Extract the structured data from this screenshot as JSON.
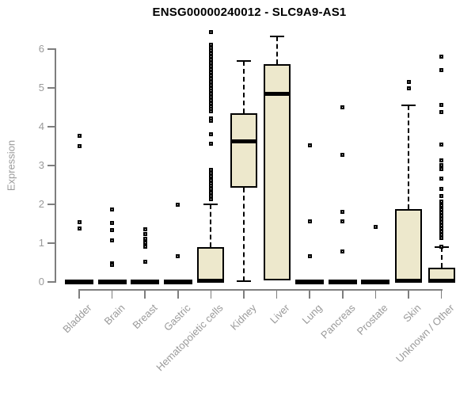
{
  "chart_data": {
    "type": "boxplot",
    "title": "ENSG00000240012 - SLC9A9-AS1",
    "ylabel": "Expression",
    "ylim": [
      0,
      6.5
    ],
    "yticks": [
      0,
      1,
      2,
      3,
      4,
      5,
      6
    ],
    "grid": false,
    "legend": "none",
    "categories": [
      "Bladder",
      "Brain",
      "Breast",
      "Gastric",
      "Hematopoietic cells",
      "Kidney",
      "Liver",
      "Lung",
      "Pancreas",
      "Prostate",
      "Skin",
      "Unknown / Other"
    ],
    "series": [
      {
        "name": "Bladder",
        "whisker_low": 0,
        "q1": 0,
        "median": 0,
        "q3": 0,
        "whisker_high": 0,
        "outliers": [
          3.76,
          3.49,
          1.55,
          1.38
        ]
      },
      {
        "name": "Brain",
        "whisker_low": 0,
        "q1": 0,
        "median": 0,
        "q3": 0,
        "whisker_high": 0,
        "outliers": [
          1.86,
          1.53,
          1.33,
          1.08,
          0.48,
          0.44
        ]
      },
      {
        "name": "Breast",
        "whisker_low": 0,
        "q1": 0,
        "median": 0,
        "q3": 0,
        "whisker_high": 0,
        "outliers": [
          1.35,
          1.23,
          1.12,
          1.01,
          0.9,
          0.52
        ]
      },
      {
        "name": "Gastric",
        "whisker_low": 0,
        "q1": 0,
        "median": 0,
        "q3": 0,
        "whisker_high": 0,
        "outliers": [
          1.98,
          0.67
        ]
      },
      {
        "name": "Hematopoietic cells",
        "whisker_low": 0,
        "q1": 0,
        "median": 0.03,
        "q3": 0.9,
        "whisker_high": 2.0,
        "outliers": [
          6.43,
          6.12,
          6.04,
          5.96,
          5.88,
          5.8,
          5.72,
          5.64,
          5.56,
          5.48,
          5.4,
          5.32,
          5.24,
          5.16,
          5.08,
          5.0,
          4.92,
          4.84,
          4.76,
          4.68,
          4.6,
          4.52,
          4.45,
          4.39,
          4.22,
          4.16,
          3.8,
          3.57,
          2.88,
          2.8,
          2.72,
          2.63,
          2.55,
          2.47,
          2.39,
          2.3,
          2.22,
          2.14
        ]
      },
      {
        "name": "Kidney",
        "whisker_low": 0.02,
        "q1": 2.43,
        "median": 3.63,
        "q3": 4.35,
        "whisker_high": 5.69,
        "outliers": []
      },
      {
        "name": "Liver",
        "whisker_low": 0.05,
        "q1": 0.05,
        "median": 4.84,
        "q3": 5.61,
        "whisker_high": 6.33,
        "outliers": []
      },
      {
        "name": "Lung",
        "whisker_low": 0,
        "q1": 0,
        "median": 0,
        "q3": 0,
        "whisker_high": 0,
        "outliers": [
          3.53,
          1.57,
          0.67
        ]
      },
      {
        "name": "Pancreas",
        "whisker_low": 0,
        "q1": 0,
        "median": 0,
        "q3": 0,
        "whisker_high": 0,
        "outliers": [
          4.51,
          3.27,
          1.8,
          1.57,
          0.78
        ]
      },
      {
        "name": "Prostate",
        "whisker_low": 0,
        "q1": 0,
        "median": 0,
        "q3": 0,
        "whisker_high": 0,
        "outliers": [
          1.41
        ]
      },
      {
        "name": "Skin",
        "whisker_low": 0,
        "q1": 0,
        "median": 0.03,
        "q3": 1.88,
        "whisker_high": 4.55,
        "outliers": [
          5.15,
          5.0
        ]
      },
      {
        "name": "Unknown / Other",
        "whisker_low": 0,
        "q1": 0,
        "median": 0.03,
        "q3": 0.37,
        "whisker_high": 0.9,
        "outliers": [
          5.8,
          5.45,
          4.57,
          4.37,
          3.55,
          3.14,
          3.02,
          2.9,
          2.67,
          2.39,
          2.22,
          2.08,
          1.96,
          1.86,
          1.78,
          1.7,
          1.62,
          1.54,
          1.46,
          1.38,
          1.3,
          1.22,
          1.14,
          0.9
        ]
      }
    ],
    "colors": {
      "box_fill": "#EDE8CC",
      "box_stroke": "#000000",
      "axis": "#7E7E7E",
      "label_text": "#9A9A9A",
      "title_text": "#000000"
    }
  }
}
